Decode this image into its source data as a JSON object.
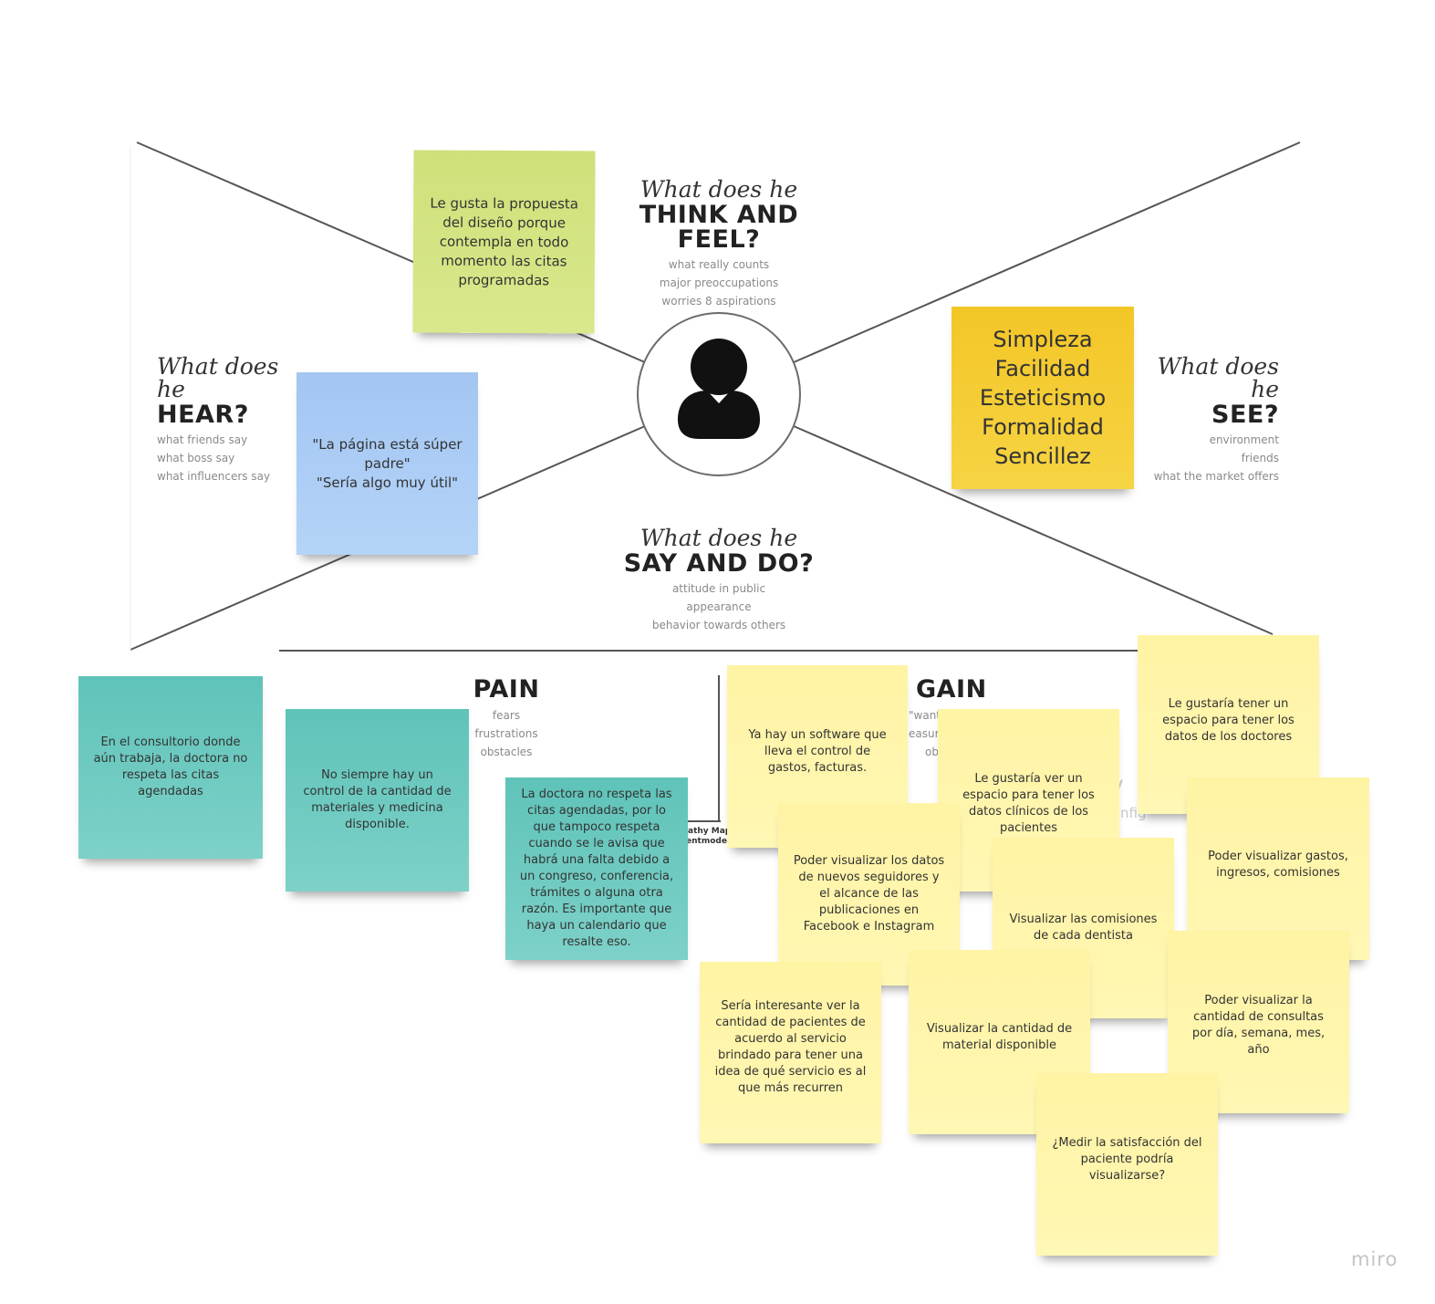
{
  "map": {
    "think": {
      "script": "What does he",
      "title": "THINK AND FEEL?",
      "lines": [
        "what really counts",
        "major preoccupations",
        "worries 8 aspirations"
      ]
    },
    "hear": {
      "script": "What does he",
      "title": "HEAR?",
      "lines": [
        "what friends say",
        "what boss say",
        "what influencers say"
      ]
    },
    "see": {
      "script": "What does he",
      "title": "SEE?",
      "lines": [
        "environment",
        "friends",
        "what the market offers"
      ]
    },
    "say": {
      "script": "What does he",
      "title": "SAY AND DO?",
      "lines": [
        "attitude in public",
        "appearance",
        "behavior towards others"
      ]
    },
    "pain": {
      "title": "PAIN",
      "lines": [
        "fears",
        "frustrations",
        "obstacles"
      ]
    },
    "gain": {
      "title": "GAIN",
      "lines": [
        "\"want",
        "easure",
        "ob"
      ]
    },
    "partial": {
      "text1": "r V",
      "text2": "nfig",
      "caption1": "athy Map",
      "caption2": "entmodel"
    }
  },
  "notes": {
    "think_note": "Le gusta la propuesta del diseño porque contempla en todo momento las citas programadas",
    "hear_note": "\"La página está súper padre\"\n\"Sería algo muy útil\"",
    "see_note": "Simpleza\nFacilidad\nEsteticismo\nFormalidad\nSencillez",
    "pain_1": "En el consultorio donde aún trabaja, la doctora no respeta las citas agendadas",
    "pain_2": "No siempre hay un control de la cantidad de materiales y medicina disponible.",
    "pain_3": "La doctora no respeta las citas agendadas, por lo que tampoco respeta cuando se le avisa que habrá una falta debido a un congreso, conferencia, trámites o alguna otra razón. Es importante que haya un calendario que resalte eso.",
    "gain_1": "Ya hay un software que lleva el control de gastos, facturas.",
    "gain_2": "Le gustaría ver un espacio para tener los datos clínicos de los pacientes",
    "gain_3": "Le gustaría tener un espacio para tener los datos de los doctores",
    "gain_4": "Poder visualizar los datos de nuevos seguidores y el alcance de las publicaciones en Facebook e Instagram",
    "gain_5": "Visualizar las comisiones de cada dentista",
    "gain_6": "Poder visualizar gastos, ingresos, comisiones",
    "gain_7": "Sería interesante ver la cantidad de pacientes de acuerdo al servicio brindado para tener una idea de qué servicio es al que más recurren",
    "gain_8": "Visualizar la cantidad de material disponible",
    "gain_9": "Poder visualizar la cantidad de consultas por día, semana, mes, año",
    "gain_10": "¿Medir la satisfacción del paciente podría visualizarse?"
  },
  "watermark": "miro",
  "colors": {
    "green": "#d4e483",
    "blue": "#abcdf5",
    "orange": "#f4cc35",
    "teal": "#6ccabf",
    "yellow": "#fff5ac",
    "line": "#555555"
  },
  "icons": {
    "persona": "user-silhouette-icon"
  }
}
